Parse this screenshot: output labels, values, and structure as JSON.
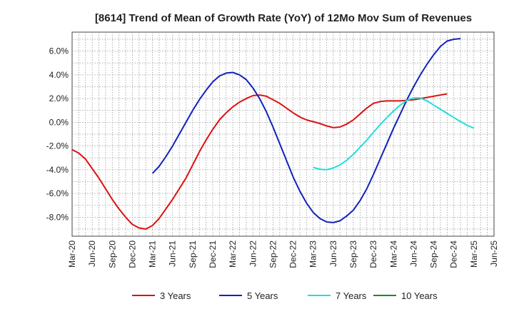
{
  "chart_data": {
    "type": "line",
    "title": "[8614]  Trend of Mean of Growth Rate (YoY) of 12Mo Mov Sum of Revenues",
    "xlabel": "",
    "ylabel": "",
    "x_tick_labels": [
      "Mar-20",
      "Jun-20",
      "Sep-20",
      "Dec-20",
      "Mar-21",
      "Jun-21",
      "Sep-21",
      "Dec-21",
      "Mar-22",
      "Jun-22",
      "Sep-22",
      "Dec-22",
      "Mar-23",
      "Jun-23",
      "Sep-23",
      "Dec-23",
      "Mar-24",
      "Jun-24",
      "Sep-24",
      "Dec-24",
      "Mar-25",
      "Jun-25"
    ],
    "y_ticks": [
      6.0,
      4.0,
      2.0,
      0.0,
      -2.0,
      -4.0,
      -6.0,
      -8.0
    ],
    "y_tick_labels": [
      "6.0%",
      "4.0%",
      "2.0%",
      "0.0%",
      "-2.0%",
      "-4.0%",
      "-6.0%",
      "-8.0%"
    ],
    "ylim": [
      -9.6,
      7.6
    ],
    "grid": true,
    "legend_position": "bottom",
    "series": [
      {
        "name": "3 Years",
        "color": "#dd1111",
        "start_index": 0,
        "values": [
          -2.3,
          -2.6,
          -3.1,
          -3.9,
          -4.7,
          -5.6,
          -6.5,
          -7.3,
          -8.0,
          -8.6,
          -8.9,
          -9.0,
          -8.7,
          -8.1,
          -7.3,
          -6.5,
          -5.6,
          -4.7,
          -3.6,
          -2.5,
          -1.5,
          -0.6,
          0.2,
          0.8,
          1.3,
          1.7,
          2.0,
          2.25,
          2.3,
          2.2,
          1.9,
          1.6,
          1.2,
          0.8,
          0.45,
          0.2,
          0.05,
          -0.1,
          -0.3,
          -0.45,
          -0.4,
          -0.15,
          0.2,
          0.7,
          1.2,
          1.6,
          1.75,
          1.8,
          1.8,
          1.8,
          1.85,
          1.9,
          2.0,
          2.1,
          2.2,
          2.3,
          2.4
        ]
      },
      {
        "name": "5 Years",
        "color": "#1122bb",
        "start_index": 12,
        "values": [
          -4.3,
          -3.7,
          -2.9,
          -2.0,
          -1.0,
          0.0,
          1.0,
          1.9,
          2.7,
          3.4,
          3.9,
          4.15,
          4.2,
          4.0,
          3.6,
          2.9,
          2.0,
          0.9,
          -0.4,
          -1.8,
          -3.2,
          -4.6,
          -5.8,
          -6.8,
          -7.6,
          -8.1,
          -8.4,
          -8.45,
          -8.3,
          -7.9,
          -7.4,
          -6.6,
          -5.6,
          -4.4,
          -3.1,
          -1.8,
          -0.5,
          0.7,
          1.9,
          3.0,
          4.0,
          4.9,
          5.7,
          6.4,
          6.85,
          7.0,
          7.05
        ]
      },
      {
        "name": "7 Years",
        "color": "#22dddd",
        "start_index": 36,
        "values": [
          -3.8,
          -3.95,
          -4.0,
          -3.85,
          -3.6,
          -3.2,
          -2.7,
          -2.1,
          -1.5,
          -0.85,
          -0.2,
          0.4,
          0.95,
          1.45,
          1.85,
          2.05,
          2.05,
          1.8,
          1.45,
          1.1,
          0.75,
          0.4,
          0.05,
          -0.25,
          -0.5
        ]
      },
      {
        "name": "10 Years",
        "color": "#228822",
        "start_index": 0,
        "values": []
      }
    ]
  }
}
